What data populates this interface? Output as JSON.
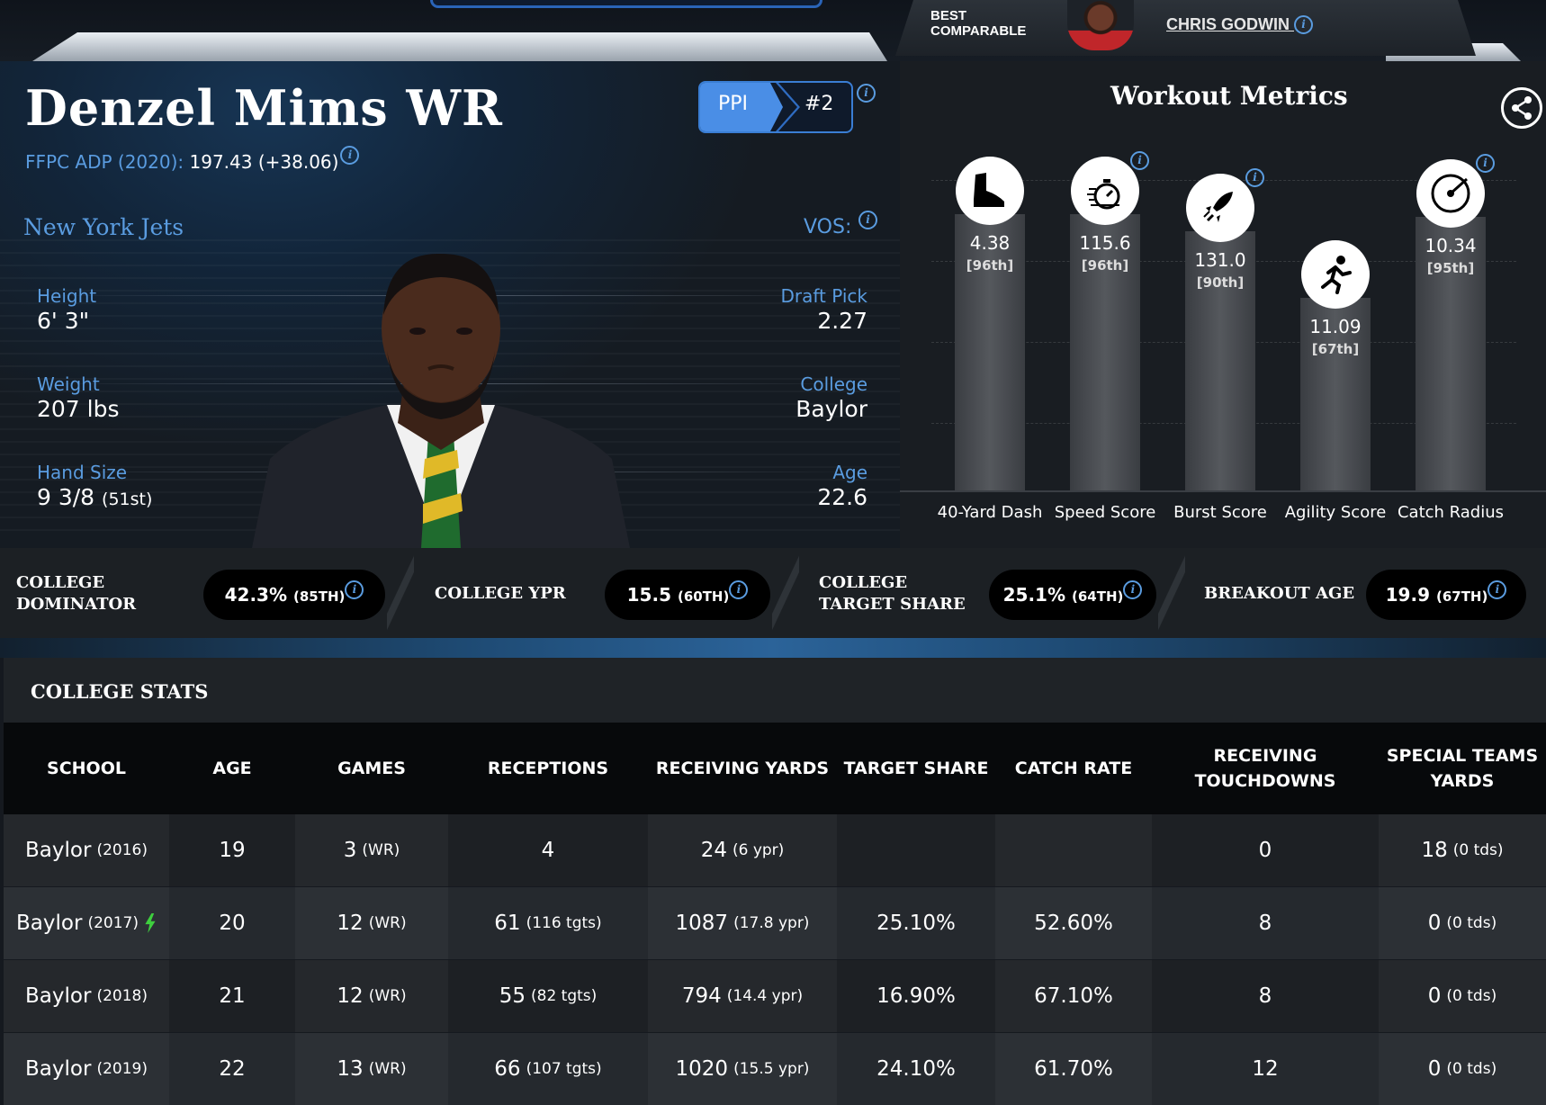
{
  "comparable": {
    "label": "BEST\nCOMPARABLE",
    "name": "CHRIS GODWIN"
  },
  "player": {
    "name": "Denzel Mims WR",
    "adp_label": "FFPC ADP (2020):",
    "adp_value": "197.43 (+38.06)",
    "ppi_label": "PPI",
    "ppi_rank": "#2",
    "team": "New York Jets",
    "vos_label": "VOS:",
    "height_label": "Height",
    "height": "6' 3\"",
    "weight_label": "Weight",
    "weight": "207 lbs",
    "hand_label": "Hand Size",
    "hand_value": "9 3/8",
    "hand_pct": "(51st)",
    "draft_label": "Draft Pick",
    "draft": "2.27",
    "college_label": "College",
    "college": "Baylor",
    "age_label": "Age",
    "age": "22.6"
  },
  "workout": {
    "title": "Workout Metrics",
    "metrics": [
      {
        "label": "40-Yard Dash",
        "value": "4.38",
        "pct": "[96th]",
        "percentile": 96,
        "icon": "shoe-icon"
      },
      {
        "label": "Speed Score",
        "value": "115.6",
        "pct": "[96th]",
        "percentile": 96,
        "icon": "stopwatch-icon"
      },
      {
        "label": "Burst Score",
        "value": "131.0",
        "pct": "[90th]",
        "percentile": 90,
        "icon": "rocket-icon"
      },
      {
        "label": "Agility Score",
        "value": "11.09",
        "pct": "[67th]",
        "percentile": 67,
        "icon": "runner-icon"
      },
      {
        "label": "Catch Radius",
        "value": "10.34",
        "pct": "[95th]",
        "percentile": 95,
        "icon": "target-icon"
      }
    ]
  },
  "strip": {
    "items": [
      {
        "label": "COLLEGE\nDOMINATOR",
        "value": "42.3%",
        "pct": "(85TH)"
      },
      {
        "label": "COLLEGE YPR",
        "value": "15.5",
        "pct": "(60TH)"
      },
      {
        "label": "COLLEGE\nTARGET SHARE",
        "value": "25.1%",
        "pct": "(64TH)"
      },
      {
        "label": "BREAKOUT AGE",
        "value": "19.9",
        "pct": "(67TH)"
      }
    ]
  },
  "college_stats": {
    "title": "COLLEGE STATS",
    "columns": [
      "SCHOOL",
      "AGE",
      "GAMES",
      "RECEPTIONS",
      "RECEIVING YARDS",
      "TARGET SHARE",
      "CATCH RATE",
      "RECEIVING\nTOUCHDOWNS",
      "SPECIAL TEAMS\nYARDS"
    ],
    "rows": [
      {
        "school": "Baylor",
        "year": "(2016)",
        "breakout": false,
        "age": "19",
        "games": "3",
        "games_pos": "(WR)",
        "rec": "4",
        "rec_sub": "",
        "yds": "24",
        "yds_sub": "(6 ypr)",
        "ts": "",
        "cr": "",
        "td": "0",
        "st": "18",
        "st_sub": "(0 tds)"
      },
      {
        "school": "Baylor",
        "year": "(2017)",
        "breakout": true,
        "age": "20",
        "games": "12",
        "games_pos": "(WR)",
        "rec": "61",
        "rec_sub": "(116 tgts)",
        "yds": "1087",
        "yds_sub": "(17.8 ypr)",
        "ts": "25.10%",
        "cr": "52.60%",
        "td": "8",
        "st": "0",
        "st_sub": "(0 tds)"
      },
      {
        "school": "Baylor",
        "year": "(2018)",
        "breakout": false,
        "age": "21",
        "games": "12",
        "games_pos": "(WR)",
        "rec": "55",
        "rec_sub": "(82 tgts)",
        "yds": "794",
        "yds_sub": "(14.4 ypr)",
        "ts": "16.90%",
        "cr": "67.10%",
        "td": "8",
        "st": "0",
        "st_sub": "(0 tds)"
      },
      {
        "school": "Baylor",
        "year": "(2019)",
        "breakout": false,
        "age": "22",
        "games": "13",
        "games_pos": "(WR)",
        "rec": "66",
        "rec_sub": "(107 tgts)",
        "yds": "1020",
        "yds_sub": "(15.5 ypr)",
        "ts": "24.10%",
        "cr": "61.70%",
        "td": "12",
        "st": "0",
        "st_sub": "(0 tds)"
      }
    ]
  },
  "colors": {
    "accent_blue": "#5a9ce0",
    "ppi_blue": "#4a8ee6",
    "breakout_green": "#3ecf3e"
  }
}
